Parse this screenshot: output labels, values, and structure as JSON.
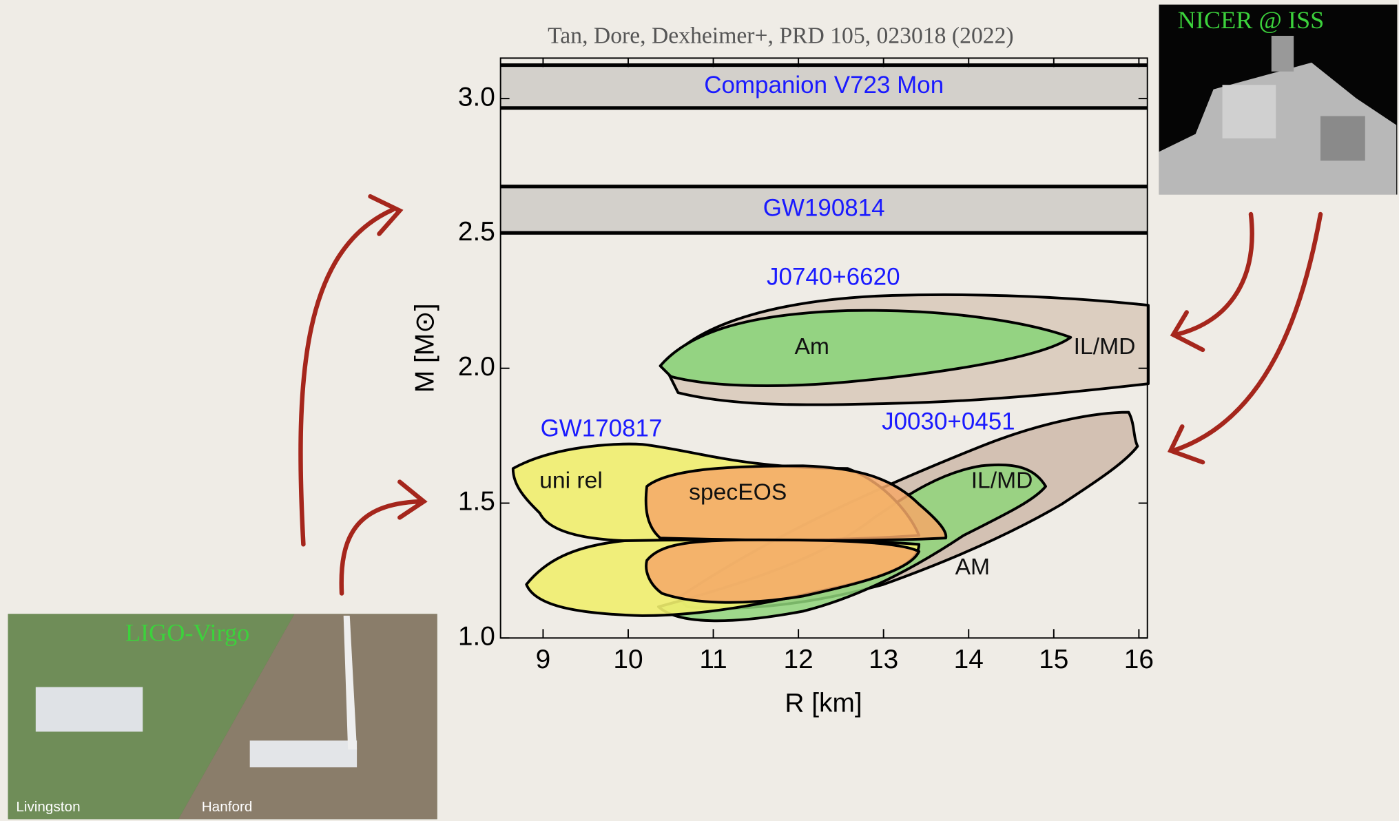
{
  "citation": "Tan, Dore, Dexheimer+, PRD 105, 023018 (2022)",
  "photos": {
    "nicer": "NICER @ ISS",
    "ligo": "LIGO-Virgo",
    "livingston": "Livingston",
    "hanford": "Hanford"
  },
  "chart_data": {
    "type": "mass-radius",
    "xlabel": "R [km]",
    "ylabel": "M [M⊙]",
    "xlim": [
      8.5,
      16.1
    ],
    "xticks": [
      9,
      10,
      11,
      12,
      13,
      14,
      15,
      16
    ],
    "ylim": [
      1.0,
      3.15
    ],
    "yticks": [
      {
        "value": 1.0,
        "label": "1.0"
      },
      1.5,
      {
        "value": 2.0,
        "label": "2.0"
      },
      2.5,
      {
        "value": 3.0,
        "label": "3.0"
      }
    ],
    "bands": [
      {
        "name": "Companion V723 Mon",
        "color": "#d3d0cb",
        "values": [
          2.965,
          3.124
        ]
      },
      {
        "name": "GW190814",
        "color": "#d3d0cb",
        "values": [
          2.502,
          2.674
        ]
      }
    ],
    "annotations": [
      "J0740+6620",
      "Am",
      "IL/MD",
      "GW170817",
      "uni rel",
      "specEOS",
      "J0030+0451",
      "IL/MD",
      "AM"
    ]
  }
}
